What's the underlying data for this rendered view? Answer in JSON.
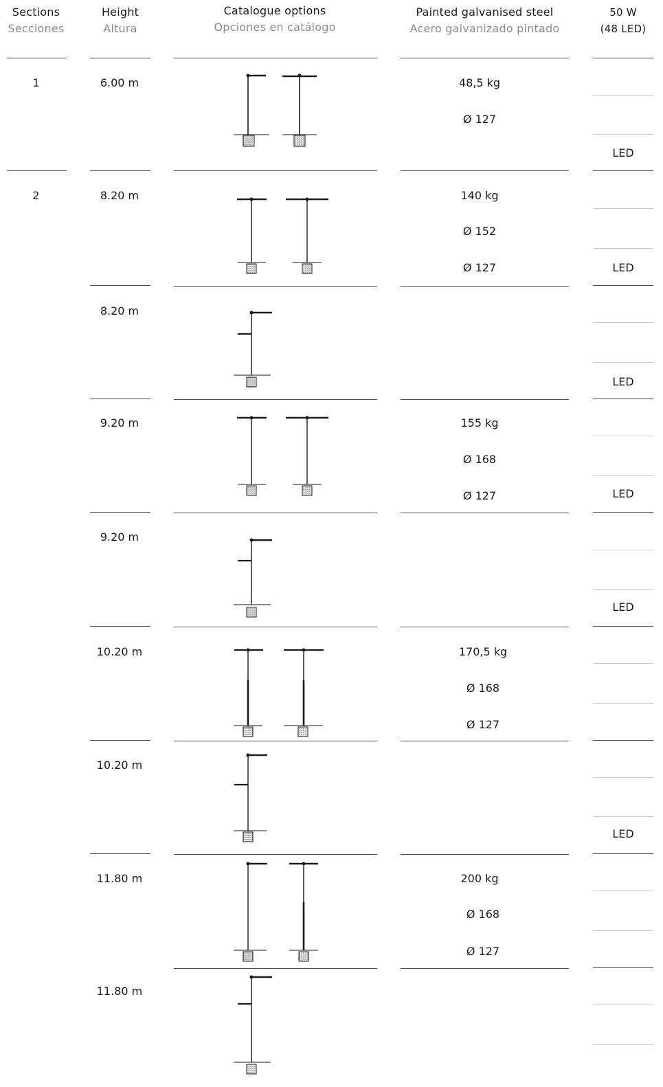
{
  "headers": {
    "sections": {
      "en": "Sections",
      "es": "Secciones"
    },
    "height": {
      "en": "Height",
      "es": "Altura"
    },
    "catalogue": {
      "en": "Catalogue options",
      "es": "Opciones en catálogo"
    },
    "steel": {
      "en": "Painted galvanised steel",
      "es": "Acero galvanizado pintado"
    },
    "power": {
      "line1": "50 W",
      "line2": "(48 LED)"
    }
  },
  "sections": [
    "1",
    "2"
  ],
  "rows": [
    {
      "height": "6.00 m",
      "specs": [
        "48,5 kg",
        "Ø 127"
      ],
      "led": "LED"
    },
    {
      "height": "8.20 m",
      "specs": [
        "140 kg",
        "Ø 152",
        "Ø 127"
      ],
      "led": "LED"
    },
    {
      "height": "8.20 m",
      "specs": [],
      "led": "LED"
    },
    {
      "height": "9.20 m",
      "specs": [
        "155 kg",
        "Ø 168",
        "Ø 127"
      ],
      "led": "LED"
    },
    {
      "height": "9.20 m",
      "specs": [],
      "led": "LED"
    },
    {
      "height": "10.20 m",
      "specs": [
        "170,5 kg",
        "Ø 168",
        "Ø 127"
      ],
      "led": ""
    },
    {
      "height": "10.20 m",
      "specs": [],
      "led": "LED"
    },
    {
      "height": "11.80 m",
      "specs": [
        "200 kg",
        "Ø 168",
        "Ø 127"
      ],
      "led": ""
    },
    {
      "height": "11.80 m",
      "specs": [],
      "led": ""
    }
  ]
}
